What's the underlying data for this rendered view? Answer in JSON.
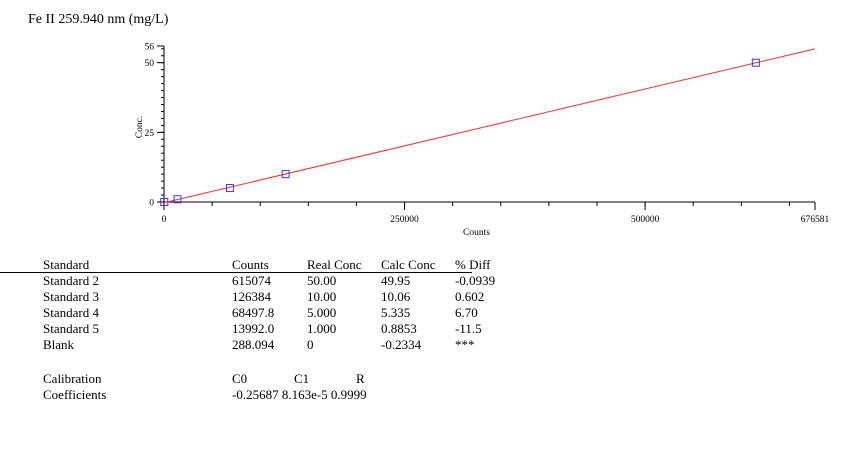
{
  "chart_data": {
    "type": "scatter",
    "title": "Fe II 259.940 nm (mg/L)",
    "xlabel": "Counts",
    "ylabel": "Conc.",
    "xlim": [
      0,
      676581
    ],
    "ylim": [
      0,
      56
    ],
    "x_ticks": [
      "0",
      "250000",
      "500000",
      "676581"
    ],
    "y_ticks": [
      "0",
      "25",
      "50",
      "56"
    ],
    "series": [
      {
        "points": [
          {
            "x": 615074,
            "y": 50.0
          },
          {
            "x": 126384,
            "y": 10.0
          },
          {
            "x": 68497.8,
            "y": 5.0
          },
          {
            "x": 13992.0,
            "y": 1.0
          },
          {
            "x": 288.094,
            "y": 0.0
          }
        ],
        "marker_color": "#3333ff"
      }
    ],
    "fit_line": {
      "c0": -0.25687,
      "c1": 8.163e-05,
      "color": "#ff2a2a"
    }
  },
  "table": {
    "headers": [
      "Standard",
      "Counts",
      "Real Conc",
      "Calc Conc",
      "% Diff"
    ],
    "rows": [
      [
        "Standard 2",
        "615074",
        "50.00",
        "49.95",
        "-0.0939"
      ],
      [
        "Standard 3",
        "126384",
        "10.00",
        "10.06",
        "0.602"
      ],
      [
        "Standard 4",
        "68497.8",
        "5.000",
        "5.335",
        "6.70"
      ],
      [
        "Standard 5",
        "13992.0",
        "1.000",
        "0.8853",
        "-11.5"
      ],
      [
        "Blank",
        "288.094",
        "0",
        "-0.2334",
        "***"
      ]
    ]
  },
  "calibration": {
    "label1": "Calibration",
    "label2": "Coefficients",
    "headers": [
      "C0",
      "C1",
      "R"
    ],
    "values": "-0.25687 8.163e-5 0.9999"
  }
}
